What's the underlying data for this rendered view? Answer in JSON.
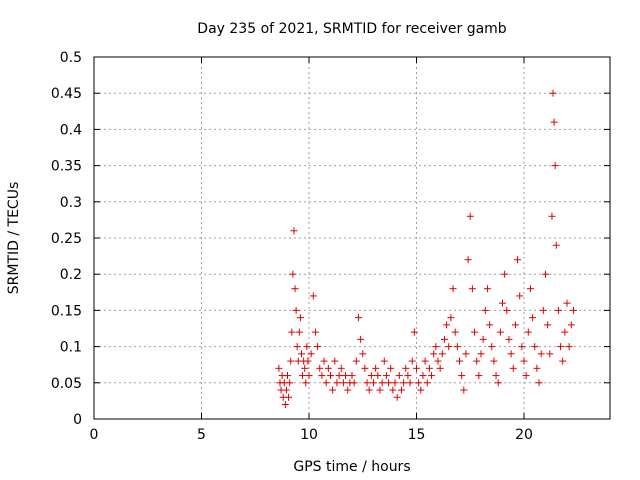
{
  "chart_data": {
    "type": "scatter",
    "title": "Day 235 of 2021, SRMTID for receiver gamb",
    "xlabel": "GPS time / hours",
    "ylabel": "SRMTID / TECUs",
    "xlim": [
      0,
      24
    ],
    "ylim": [
      0,
      0.5
    ],
    "xticks": [
      "0",
      "5",
      "10",
      "15",
      "20"
    ],
    "yticks": [
      "0",
      "0.05",
      "0.1",
      "0.15",
      "0.2",
      "0.25",
      "0.3",
      "0.35",
      "0.4",
      "0.45",
      "0.5"
    ],
    "grid": true,
    "marker": "+",
    "color": "#e00000",
    "series": [
      {
        "name": "SRMTID",
        "x": [
          8.6,
          8.65,
          8.7,
          8.75,
          8.8,
          8.85,
          8.9,
          8.95,
          9.0,
          9.05,
          9.1,
          9.15,
          9.2,
          9.25,
          9.3,
          9.35,
          9.4,
          9.45,
          9.5,
          9.55,
          9.6,
          9.65,
          9.7,
          9.75,
          9.8,
          9.85,
          9.9,
          9.95,
          10.0,
          10.1,
          10.2,
          10.3,
          10.4,
          10.5,
          10.6,
          10.7,
          10.8,
          10.9,
          11.0,
          11.1,
          11.2,
          11.3,
          11.4,
          11.5,
          11.6,
          11.7,
          11.8,
          11.9,
          12.0,
          12.1,
          12.2,
          12.3,
          12.4,
          12.5,
          12.6,
          12.7,
          12.8,
          12.9,
          13.0,
          13.1,
          13.2,
          13.3,
          13.4,
          13.5,
          13.6,
          13.7,
          13.8,
          13.9,
          14.0,
          14.1,
          14.2,
          14.3,
          14.4,
          14.5,
          14.6,
          14.7,
          14.8,
          14.9,
          15.0,
          15.1,
          15.2,
          15.3,
          15.4,
          15.5,
          15.6,
          15.7,
          15.8,
          15.9,
          16.0,
          16.1,
          16.2,
          16.3,
          16.4,
          16.5,
          16.6,
          16.7,
          16.8,
          16.9,
          17.0,
          17.1,
          17.2,
          17.3,
          17.4,
          17.5,
          17.6,
          17.7,
          17.8,
          17.9,
          18.0,
          18.1,
          18.2,
          18.3,
          18.4,
          18.5,
          18.6,
          18.7,
          18.8,
          18.9,
          19.0,
          19.1,
          19.2,
          19.3,
          19.4,
          19.5,
          19.6,
          19.7,
          19.8,
          19.9,
          20.0,
          20.1,
          20.2,
          20.3,
          20.4,
          20.5,
          20.6,
          20.7,
          20.8,
          20.9,
          21.0,
          21.1,
          21.2,
          21.3,
          21.35,
          21.4,
          21.45,
          21.5,
          21.6,
          21.7,
          21.8,
          21.9,
          22.0,
          22.1,
          22.2,
          22.3
        ],
        "y": [
          0.07,
          0.05,
          0.04,
          0.06,
          0.03,
          0.05,
          0.02,
          0.04,
          0.06,
          0.03,
          0.05,
          0.08,
          0.12,
          0.2,
          0.26,
          0.18,
          0.15,
          0.1,
          0.08,
          0.12,
          0.14,
          0.09,
          0.06,
          0.08,
          0.07,
          0.05,
          0.1,
          0.08,
          0.06,
          0.09,
          0.17,
          0.12,
          0.1,
          0.07,
          0.06,
          0.08,
          0.05,
          0.07,
          0.06,
          0.04,
          0.08,
          0.05,
          0.06,
          0.07,
          0.05,
          0.06,
          0.04,
          0.05,
          0.06,
          0.05,
          0.08,
          0.14,
          0.11,
          0.09,
          0.07,
          0.05,
          0.04,
          0.06,
          0.05,
          0.07,
          0.06,
          0.04,
          0.05,
          0.08,
          0.06,
          0.05,
          0.07,
          0.04,
          0.05,
          0.03,
          0.06,
          0.04,
          0.05,
          0.07,
          0.06,
          0.05,
          0.08,
          0.12,
          0.07,
          0.05,
          0.04,
          0.06,
          0.08,
          0.05,
          0.07,
          0.06,
          0.09,
          0.1,
          0.08,
          0.07,
          0.09,
          0.11,
          0.13,
          0.1,
          0.14,
          0.18,
          0.12,
          0.1,
          0.08,
          0.06,
          0.04,
          0.09,
          0.22,
          0.28,
          0.18,
          0.12,
          0.08,
          0.06,
          0.09,
          0.11,
          0.15,
          0.18,
          0.13,
          0.1,
          0.08,
          0.06,
          0.05,
          0.12,
          0.16,
          0.2,
          0.15,
          0.11,
          0.09,
          0.07,
          0.13,
          0.22,
          0.17,
          0.1,
          0.08,
          0.06,
          0.12,
          0.18,
          0.14,
          0.1,
          0.07,
          0.05,
          0.09,
          0.15,
          0.2,
          0.13,
          0.09,
          0.28,
          0.45,
          0.41,
          0.35,
          0.24,
          0.15,
          0.1,
          0.08,
          0.12,
          0.16,
          0.1,
          0.13,
          0.15
        ]
      }
    ]
  }
}
